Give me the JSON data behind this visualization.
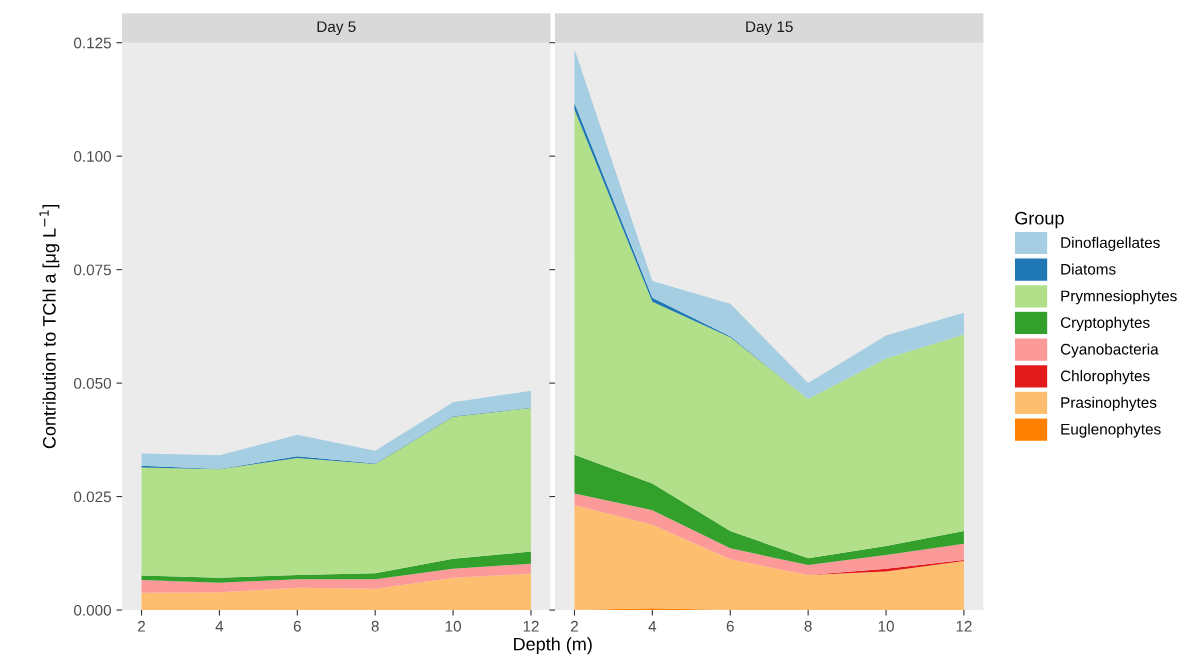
{
  "chart_data": [
    {
      "type": "area",
      "title": "Day 5",
      "xlabel": "Depth (m)",
      "ylabel": "Contribution to TChl a [μg L$^{−1}$]",
      "stacked": true,
      "x": [
        2,
        4,
        6,
        8,
        10,
        12
      ],
      "xlim": [
        1.5,
        12.5
      ],
      "xticks": [
        2,
        4,
        6,
        8,
        10,
        12
      ],
      "ylim": [
        0,
        0.125
      ],
      "yticks": [
        {
          "value": 0,
          "label": "0.000"
        },
        {
          "value": 0.025,
          "label": "0.025"
        },
        {
          "value": 0.05,
          "label": "0.050"
        },
        {
          "value": 0.075,
          "label": "0.075"
        },
        {
          "value": 0.1,
          "label": "0.100"
        },
        {
          "value": 0.125,
          "label": "0.125"
        }
      ],
      "grid": false,
      "series": [
        {
          "color": "#fdbf6f",
          "values": [
            0.0038,
            0.0039,
            0.0049,
            0.0047,
            0.0071,
            0.008
          ]
        },
        {
          "color": "#fb9a99",
          "values": [
            0.0028,
            0.0021,
            0.0019,
            0.0021,
            0.002,
            0.0022
          ]
        },
        {
          "color": "#33a02c",
          "values": [
            0.001,
            0.0011,
            0.0009,
            0.0013,
            0.0022,
            0.0027
          ]
        },
        {
          "color": "#b2df8a",
          "values": [
            0.0238,
            0.0239,
            0.0258,
            0.0241,
            0.0313,
            0.0316
          ]
        },
        {
          "color": "#1f78b4",
          "values": [
            0.0004,
            0.0001,
            0.0004,
            0.0001,
            0.0001,
            0.0001
          ]
        },
        {
          "color": "#a6cee3",
          "values": [
            0.0027,
            0.003,
            0.0047,
            0.0028,
            0.0031,
            0.0037
          ]
        }
      ]
    },
    {
      "type": "area",
      "title": "Day 15",
      "stacked": true,
      "x": [
        2,
        4,
        6,
        8,
        10,
        12
      ],
      "xlim": [
        1.5,
        12.5
      ],
      "xticks": [
        2,
        4,
        6,
        8,
        10,
        12
      ],
      "ylim": [
        0,
        0.125
      ],
      "yticks": [
        0,
        0.025,
        0.05,
        0.075,
        0.1,
        0.125
      ],
      "tick_labels": "x",
      "grid": false,
      "legend": "right",
      "legend_title": "Group",
      "series": [
        {
          "name": "Euglenophytes",
          "color": "#ff7f00",
          "values": [
            0,
            0.0004,
            0,
            0,
            0,
            0
          ]
        },
        {
          "name": "Prasinophytes",
          "color": "#fdbf6f",
          "values": [
            0.0231,
            0.0184,
            0.0112,
            0.0077,
            0.0085,
            0.0108
          ]
        },
        {
          "name": "Chlorophytes",
          "color": "#e31a1c",
          "values": [
            0,
            0,
            0,
            0,
            0.0006,
            0.0002
          ]
        },
        {
          "name": "Cyanobacteria",
          "color": "#fb9a99",
          "values": [
            0.0026,
            0.0032,
            0.0024,
            0.0022,
            0.003,
            0.0036
          ]
        },
        {
          "name": "Cryptophytes",
          "color": "#33a02c",
          "values": [
            0.0085,
            0.0059,
            0.0038,
            0.0015,
            0.002,
            0.0028
          ]
        },
        {
          "name": "Prymnesiophytes",
          "color": "#b2df8a",
          "values": [
            0.076,
            0.04,
            0.0427,
            0.0351,
            0.0413,
            0.0433
          ]
        },
        {
          "name": "Diatoms",
          "color": "#1f78b4",
          "values": [
            0.0015,
            0.0009,
            0.0002,
            0,
            0,
            0
          ]
        },
        {
          "name": "Dinoflagellates",
          "color": "#a6cee3",
          "values": [
            0.0119,
            0.0037,
            0.0072,
            0.0035,
            0.0051,
            0.0048
          ]
        }
      ]
    }
  ]
}
